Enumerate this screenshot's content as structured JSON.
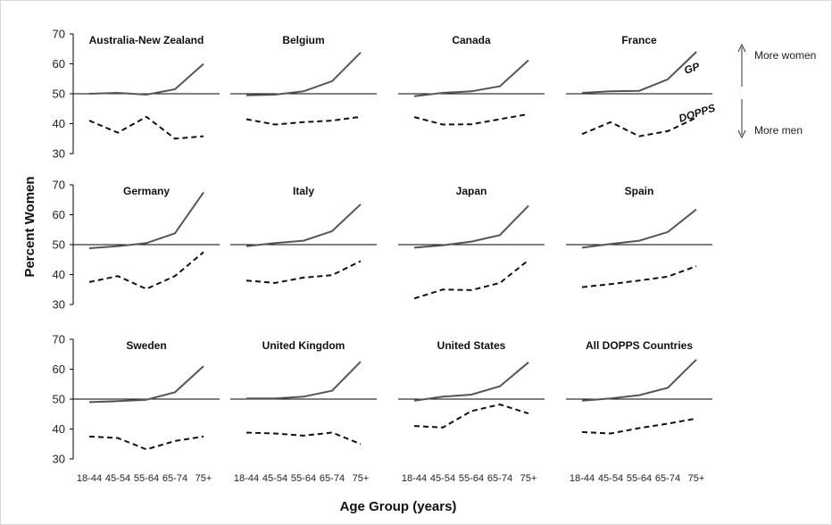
{
  "chart_data": {
    "type": "line",
    "xlabel": "Age Group (years)",
    "ylabel": "Percent Women",
    "categories": [
      "18-44",
      "45-54",
      "55-64",
      "65-74",
      "75+"
    ],
    "ylim": [
      30,
      70
    ],
    "yticks": [
      30,
      40,
      50,
      60,
      70
    ],
    "reference_line": 50,
    "annotations": {
      "up": "More women",
      "down": "More men",
      "gp_label": "GP",
      "dopps_label": "DOPPS"
    },
    "panels": [
      {
        "title": "Australia-New Zealand",
        "series": [
          {
            "name": "GP",
            "style": "solid",
            "values": [
              50.0,
              50.3,
              49.7,
              51.5,
              60.0
            ]
          },
          {
            "name": "DOPPS",
            "style": "dashed",
            "values": [
              41.0,
              37.0,
              42.3,
              35.0,
              35.8
            ]
          }
        ]
      },
      {
        "title": "Belgium",
        "series": [
          {
            "name": "GP",
            "style": "solid",
            "values": [
              49.5,
              49.7,
              50.8,
              54.2,
              63.8
            ]
          },
          {
            "name": "DOPPS",
            "style": "dashed",
            "values": [
              41.5,
              39.7,
              40.5,
              41.0,
              42.3
            ]
          }
        ]
      },
      {
        "title": "Canada",
        "series": [
          {
            "name": "GP",
            "style": "solid",
            "values": [
              49.2,
              50.3,
              50.8,
              52.5,
              61.2
            ]
          },
          {
            "name": "DOPPS",
            "style": "dashed",
            "values": [
              42.2,
              39.7,
              39.8,
              41.5,
              43.2
            ]
          }
        ]
      },
      {
        "title": "France",
        "series": [
          {
            "name": "GP",
            "style": "solid",
            "values": [
              50.3,
              50.8,
              51.0,
              54.8,
              64.0
            ]
          },
          {
            "name": "DOPPS",
            "style": "dashed",
            "values": [
              36.5,
              40.5,
              35.8,
              37.5,
              42.0
            ]
          }
        ]
      },
      {
        "title": "Germany",
        "series": [
          {
            "name": "GP",
            "style": "solid",
            "values": [
              48.8,
              49.5,
              50.5,
              53.8,
              67.5
            ]
          },
          {
            "name": "DOPPS",
            "style": "dashed",
            "values": [
              37.5,
              39.5,
              35.2,
              39.5,
              47.5
            ]
          }
        ]
      },
      {
        "title": "Italy",
        "series": [
          {
            "name": "GP",
            "style": "solid",
            "values": [
              49.5,
              50.5,
              51.3,
              54.5,
              63.5
            ]
          },
          {
            "name": "DOPPS",
            "style": "dashed",
            "values": [
              38.0,
              37.2,
              39.0,
              39.8,
              44.5
            ]
          }
        ]
      },
      {
        "title": "Japan",
        "series": [
          {
            "name": "GP",
            "style": "solid",
            "values": [
              49.0,
              49.8,
              51.0,
              53.2,
              63.0
            ]
          },
          {
            "name": "DOPPS",
            "style": "dashed",
            "values": [
              32.0,
              35.0,
              34.8,
              37.2,
              44.8
            ]
          }
        ]
      },
      {
        "title": "Spain",
        "series": [
          {
            "name": "GP",
            "style": "solid",
            "values": [
              49.0,
              50.2,
              51.3,
              54.2,
              61.8
            ]
          },
          {
            "name": "DOPPS",
            "style": "dashed",
            "values": [
              35.8,
              36.8,
              38.0,
              39.3,
              42.8
            ]
          }
        ]
      },
      {
        "title": "Sweden",
        "series": [
          {
            "name": "GP",
            "style": "solid",
            "values": [
              49.0,
              49.3,
              49.8,
              52.3,
              61.0
            ]
          },
          {
            "name": "DOPPS",
            "style": "dashed",
            "values": [
              37.5,
              37.0,
              33.2,
              36.0,
              37.5
            ]
          }
        ]
      },
      {
        "title": "United Kingdom",
        "series": [
          {
            "name": "GP",
            "style": "solid",
            "values": [
              50.2,
              50.2,
              50.8,
              52.8,
              62.5
            ]
          },
          {
            "name": "DOPPS",
            "style": "dashed",
            "values": [
              38.8,
              38.5,
              37.8,
              38.8,
              35.0
            ]
          }
        ]
      },
      {
        "title": "United States",
        "series": [
          {
            "name": "GP",
            "style": "solid",
            "values": [
              49.5,
              50.8,
              51.5,
              54.3,
              62.3
            ]
          },
          {
            "name": "DOPPS",
            "style": "dashed",
            "values": [
              41.0,
              40.5,
              46.0,
              48.2,
              45.2
            ]
          }
        ]
      },
      {
        "title": "All DOPPS Countries",
        "series": [
          {
            "name": "GP",
            "style": "solid",
            "values": [
              49.5,
              50.2,
              51.3,
              53.8,
              63.2
            ]
          },
          {
            "name": "DOPPS",
            "style": "dashed",
            "values": [
              39.0,
              38.5,
              40.3,
              41.8,
              43.5
            ]
          }
        ]
      }
    ]
  }
}
